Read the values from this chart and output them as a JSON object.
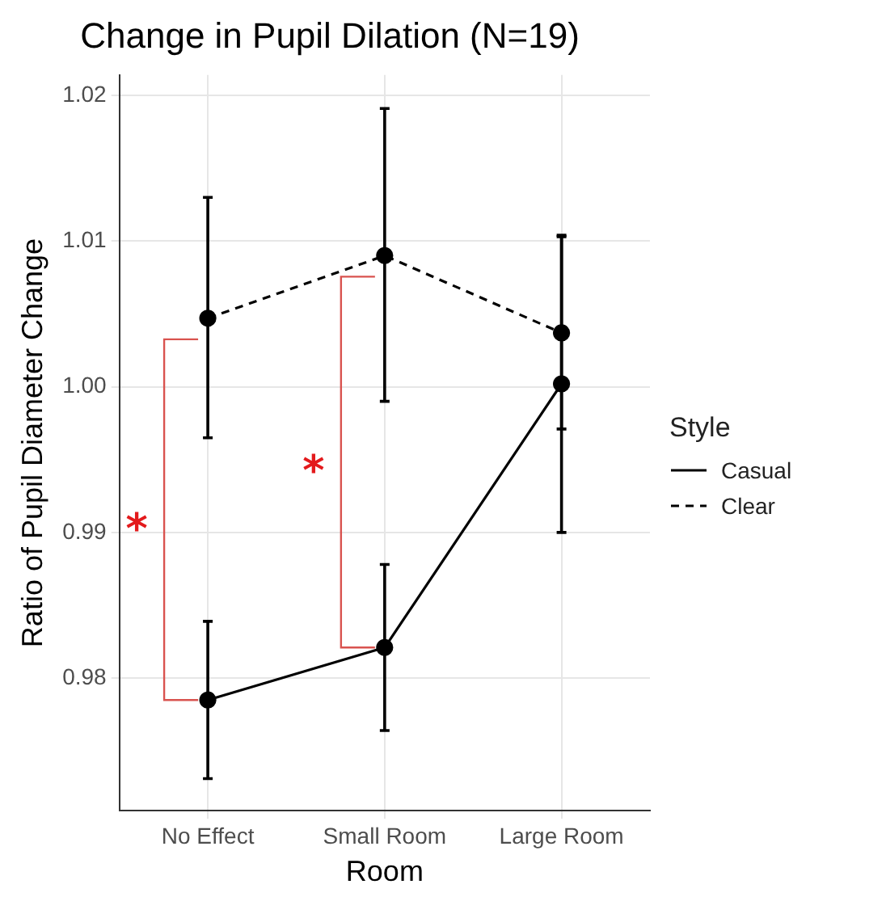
{
  "chart_data": {
    "type": "line",
    "title": "Change in Pupil Dilation (N=19)",
    "xlabel": "Room",
    "ylabel": "Ratio of Pupil Diameter Change",
    "legend_title": "Style",
    "categories": [
      "No Effect",
      "Small Room",
      "Large Room"
    ],
    "series": [
      {
        "name": "Casual",
        "color": "#000000",
        "line_style": "solid",
        "values": [
          0.9785,
          0.9821,
          1.0002
        ],
        "errors": [
          [
            0.9731,
            0.9839
          ],
          [
            0.9764,
            0.9878
          ],
          [
            0.99,
            1.0103
          ]
        ]
      },
      {
        "name": "Clear",
        "color": "#000000",
        "line_style": "dashed",
        "values": [
          1.0047,
          1.009,
          1.0037
        ],
        "errors": [
          [
            0.9965,
            1.013
          ],
          [
            0.999,
            1.0191
          ],
          [
            0.9971,
            1.0104
          ]
        ]
      }
    ],
    "annotations": [
      "*",
      "*"
    ],
    "ylim": [
      0.9709,
      1.0214
    ],
    "yticks": [
      0.98,
      0.99,
      {
        "value": 1,
        "label": "1.00"
      },
      1.01,
      1.02
    ],
    "grid": true,
    "legend": "right",
    "marker": "circle"
  }
}
